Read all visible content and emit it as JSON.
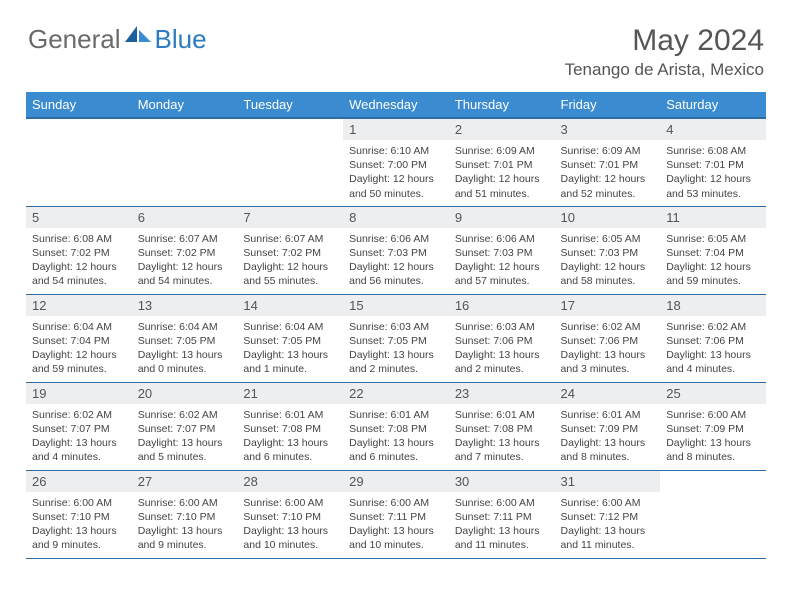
{
  "logo": {
    "general": "General",
    "blue": "Blue"
  },
  "title": "May 2024",
  "location": "Tenango de Arista, Mexico",
  "day_header_bg": "#3a8bd0",
  "border_color": "#2e6ca5",
  "daynum_bg": "#eceef0",
  "days_of_week": [
    "Sunday",
    "Monday",
    "Tuesday",
    "Wednesday",
    "Thursday",
    "Friday",
    "Saturday"
  ],
  "weeks": [
    [
      {
        "n": "",
        "lines": [
          "",
          "",
          "",
          ""
        ]
      },
      {
        "n": "",
        "lines": [
          "",
          "",
          "",
          ""
        ]
      },
      {
        "n": "",
        "lines": [
          "",
          "",
          "",
          ""
        ]
      },
      {
        "n": "1",
        "lines": [
          "Sunrise: 6:10 AM",
          "Sunset: 7:00 PM",
          "Daylight: 12 hours",
          "and 50 minutes."
        ]
      },
      {
        "n": "2",
        "lines": [
          "Sunrise: 6:09 AM",
          "Sunset: 7:01 PM",
          "Daylight: 12 hours",
          "and 51 minutes."
        ]
      },
      {
        "n": "3",
        "lines": [
          "Sunrise: 6:09 AM",
          "Sunset: 7:01 PM",
          "Daylight: 12 hours",
          "and 52 minutes."
        ]
      },
      {
        "n": "4",
        "lines": [
          "Sunrise: 6:08 AM",
          "Sunset: 7:01 PM",
          "Daylight: 12 hours",
          "and 53 minutes."
        ]
      }
    ],
    [
      {
        "n": "5",
        "lines": [
          "Sunrise: 6:08 AM",
          "Sunset: 7:02 PM",
          "Daylight: 12 hours",
          "and 54 minutes."
        ]
      },
      {
        "n": "6",
        "lines": [
          "Sunrise: 6:07 AM",
          "Sunset: 7:02 PM",
          "Daylight: 12 hours",
          "and 54 minutes."
        ]
      },
      {
        "n": "7",
        "lines": [
          "Sunrise: 6:07 AM",
          "Sunset: 7:02 PM",
          "Daylight: 12 hours",
          "and 55 minutes."
        ]
      },
      {
        "n": "8",
        "lines": [
          "Sunrise: 6:06 AM",
          "Sunset: 7:03 PM",
          "Daylight: 12 hours",
          "and 56 minutes."
        ]
      },
      {
        "n": "9",
        "lines": [
          "Sunrise: 6:06 AM",
          "Sunset: 7:03 PM",
          "Daylight: 12 hours",
          "and 57 minutes."
        ]
      },
      {
        "n": "10",
        "lines": [
          "Sunrise: 6:05 AM",
          "Sunset: 7:03 PM",
          "Daylight: 12 hours",
          "and 58 minutes."
        ]
      },
      {
        "n": "11",
        "lines": [
          "Sunrise: 6:05 AM",
          "Sunset: 7:04 PM",
          "Daylight: 12 hours",
          "and 59 minutes."
        ]
      }
    ],
    [
      {
        "n": "12",
        "lines": [
          "Sunrise: 6:04 AM",
          "Sunset: 7:04 PM",
          "Daylight: 12 hours",
          "and 59 minutes."
        ]
      },
      {
        "n": "13",
        "lines": [
          "Sunrise: 6:04 AM",
          "Sunset: 7:05 PM",
          "Daylight: 13 hours",
          "and 0 minutes."
        ]
      },
      {
        "n": "14",
        "lines": [
          "Sunrise: 6:04 AM",
          "Sunset: 7:05 PM",
          "Daylight: 13 hours",
          "and 1 minute."
        ]
      },
      {
        "n": "15",
        "lines": [
          "Sunrise: 6:03 AM",
          "Sunset: 7:05 PM",
          "Daylight: 13 hours",
          "and 2 minutes."
        ]
      },
      {
        "n": "16",
        "lines": [
          "Sunrise: 6:03 AM",
          "Sunset: 7:06 PM",
          "Daylight: 13 hours",
          "and 2 minutes."
        ]
      },
      {
        "n": "17",
        "lines": [
          "Sunrise: 6:02 AM",
          "Sunset: 7:06 PM",
          "Daylight: 13 hours",
          "and 3 minutes."
        ]
      },
      {
        "n": "18",
        "lines": [
          "Sunrise: 6:02 AM",
          "Sunset: 7:06 PM",
          "Daylight: 13 hours",
          "and 4 minutes."
        ]
      }
    ],
    [
      {
        "n": "19",
        "lines": [
          "Sunrise: 6:02 AM",
          "Sunset: 7:07 PM",
          "Daylight: 13 hours",
          "and 4 minutes."
        ]
      },
      {
        "n": "20",
        "lines": [
          "Sunrise: 6:02 AM",
          "Sunset: 7:07 PM",
          "Daylight: 13 hours",
          "and 5 minutes."
        ]
      },
      {
        "n": "21",
        "lines": [
          "Sunrise: 6:01 AM",
          "Sunset: 7:08 PM",
          "Daylight: 13 hours",
          "and 6 minutes."
        ]
      },
      {
        "n": "22",
        "lines": [
          "Sunrise: 6:01 AM",
          "Sunset: 7:08 PM",
          "Daylight: 13 hours",
          "and 6 minutes."
        ]
      },
      {
        "n": "23",
        "lines": [
          "Sunrise: 6:01 AM",
          "Sunset: 7:08 PM",
          "Daylight: 13 hours",
          "and 7 minutes."
        ]
      },
      {
        "n": "24",
        "lines": [
          "Sunrise: 6:01 AM",
          "Sunset: 7:09 PM",
          "Daylight: 13 hours",
          "and 8 minutes."
        ]
      },
      {
        "n": "25",
        "lines": [
          "Sunrise: 6:00 AM",
          "Sunset: 7:09 PM",
          "Daylight: 13 hours",
          "and 8 minutes."
        ]
      }
    ],
    [
      {
        "n": "26",
        "lines": [
          "Sunrise: 6:00 AM",
          "Sunset: 7:10 PM",
          "Daylight: 13 hours",
          "and 9 minutes."
        ]
      },
      {
        "n": "27",
        "lines": [
          "Sunrise: 6:00 AM",
          "Sunset: 7:10 PM",
          "Daylight: 13 hours",
          "and 9 minutes."
        ]
      },
      {
        "n": "28",
        "lines": [
          "Sunrise: 6:00 AM",
          "Sunset: 7:10 PM",
          "Daylight: 13 hours",
          "and 10 minutes."
        ]
      },
      {
        "n": "29",
        "lines": [
          "Sunrise: 6:00 AM",
          "Sunset: 7:11 PM",
          "Daylight: 13 hours",
          "and 10 minutes."
        ]
      },
      {
        "n": "30",
        "lines": [
          "Sunrise: 6:00 AM",
          "Sunset: 7:11 PM",
          "Daylight: 13 hours",
          "and 11 minutes."
        ]
      },
      {
        "n": "31",
        "lines": [
          "Sunrise: 6:00 AM",
          "Sunset: 7:12 PM",
          "Daylight: 13 hours",
          "and 11 minutes."
        ]
      },
      {
        "n": "",
        "lines": [
          "",
          "",
          "",
          ""
        ]
      }
    ]
  ]
}
